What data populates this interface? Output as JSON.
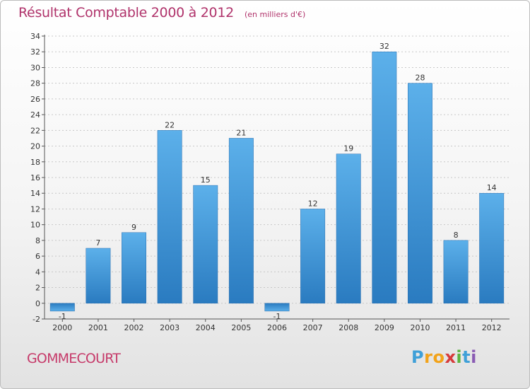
{
  "header": {
    "title": "Résultat Comptable 2000 à 2012",
    "subtitle": "(en milliers d'€)"
  },
  "footer": {
    "commune": "GOMMECOURT",
    "logo_letters": [
      "P",
      "r",
      "o",
      "x",
      "i",
      "t",
      "i"
    ],
    "logo_colors": [
      "#3fa0d8",
      "#f2a31a",
      "#f2a31a",
      "#d63b3b",
      "#5bb33f",
      "#3fa0d8",
      "#8a5bb3"
    ]
  },
  "chart_data": {
    "type": "bar",
    "title": "Résultat Comptable 2000 à 2012",
    "unit": "(en milliers d'€)",
    "categories": [
      "2000",
      "2001",
      "2002",
      "2003",
      "2004",
      "2005",
      "2006",
      "2007",
      "2008",
      "2009",
      "2010",
      "2011",
      "2012"
    ],
    "values": [
      -1,
      7,
      9,
      22,
      15,
      21,
      -1,
      12,
      19,
      32,
      28,
      8,
      14
    ],
    "labels": [
      "-1",
      "7",
      "9",
      "22",
      "15",
      "21",
      "-1",
      "12",
      "19",
      "32",
      "28",
      "8",
      "14"
    ],
    "ylim": [
      -2,
      34
    ],
    "ytick_step": 2,
    "ytick_labels": [
      "-2",
      "0",
      "2",
      "4",
      "6",
      "8",
      "10",
      "12",
      "14",
      "16",
      "18",
      "20",
      "22",
      "24",
      "26",
      "28",
      "30",
      "32",
      "34"
    ],
    "grid": true,
    "bar_color": "#4a9fe0",
    "xlabel": "",
    "ylabel": ""
  }
}
